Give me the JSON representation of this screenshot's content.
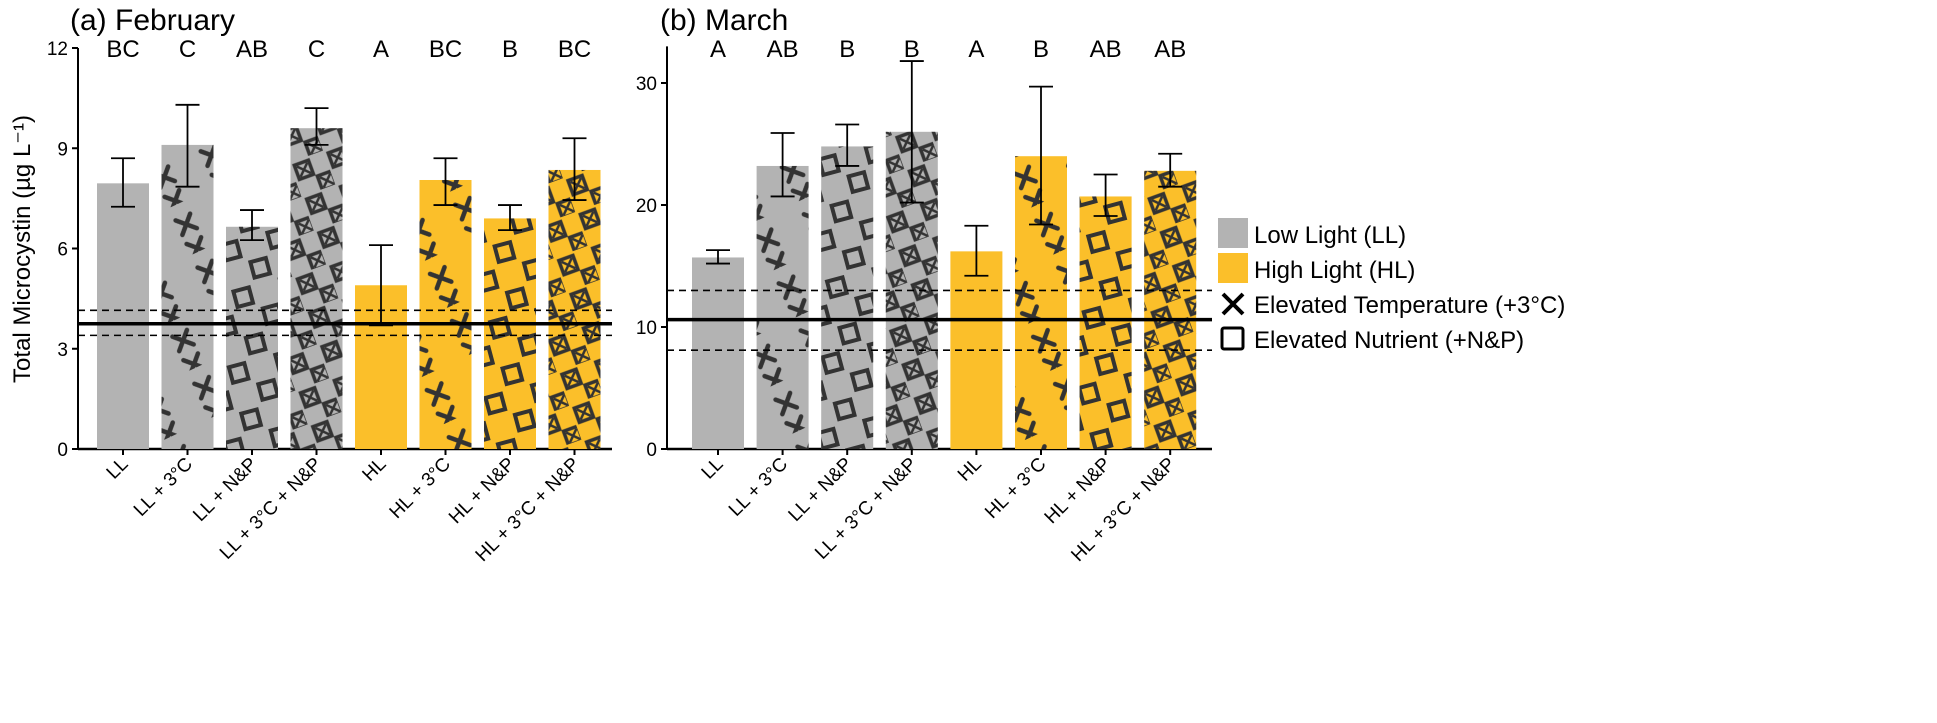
{
  "chart_data": [
    {
      "type": "bar",
      "title": "(a) February",
      "ylabel": "Total Microcystin (µg L⁻¹)",
      "ylim": [
        0,
        12
      ],
      "yticks": [
        0,
        3,
        6,
        9,
        12
      ],
      "categories": [
        "LL",
        "LL + 3°C",
        "LL + N&P",
        "LL + 3°C + N&P",
        "HL",
        "HL + 3°C",
        "HL + N&P",
        "HL + 3°C + N&P"
      ],
      "values": [
        7.95,
        9.1,
        6.65,
        9.6,
        4.9,
        8.05,
        6.9,
        8.35
      ],
      "error_low": [
        7.25,
        7.85,
        6.25,
        9.1,
        3.7,
        7.3,
        6.55,
        7.45
      ],
      "error_high": [
        8.7,
        10.3,
        7.15,
        10.2,
        6.1,
        8.7,
        7.3,
        9.3
      ],
      "letters": [
        "BC",
        "C",
        "AB",
        "C",
        "A",
        "BC",
        "B",
        "BC"
      ],
      "reference_line": 3.75,
      "reference_band": [
        3.4,
        4.15
      ]
    },
    {
      "type": "bar",
      "title": "(b) March",
      "ylim": [
        0,
        33
      ],
      "yticks": [
        0,
        10,
        20,
        30
      ],
      "categories": [
        "LL",
        "LL + 3°C",
        "LL + N&P",
        "LL + 3°C + N&P",
        "HL",
        "HL + 3°C",
        "HL + N&P",
        "HL + 3°C + N&P"
      ],
      "values": [
        15.7,
        23.2,
        24.8,
        26.0,
        16.2,
        24.0,
        20.7,
        22.8
      ],
      "error_low": [
        15.2,
        20.7,
        23.2,
        20.2,
        14.2,
        18.4,
        19.1,
        21.5
      ],
      "error_high": [
        16.3,
        25.9,
        26.6,
        31.8,
        18.3,
        29.7,
        22.5,
        24.2
      ],
      "letters": [
        "A",
        "AB",
        "B",
        "B",
        "A",
        "B",
        "AB",
        "AB"
      ],
      "reference_line": 10.6,
      "reference_band": [
        8.1,
        13.0
      ]
    }
  ],
  "treatments": {
    "light": [
      "LL",
      "LL",
      "LL",
      "LL",
      "HL",
      "HL",
      "HL",
      "HL"
    ],
    "pattern": [
      "none",
      "cross",
      "square",
      "both",
      "none",
      "cross",
      "square",
      "both"
    ]
  },
  "legend": {
    "placement": "right",
    "entries": [
      {
        "label": "Low Light (LL)",
        "kind": "fill",
        "color": "#b3b3b3"
      },
      {
        "label": "High Light (HL)",
        "kind": "fill",
        "color": "#fbbf2a"
      },
      {
        "label": "Elevated Temperature (+3°C)",
        "kind": "cross-icon"
      },
      {
        "label": "Elevated Nutrient (+N&P)",
        "kind": "square-icon"
      }
    ]
  },
  "colors": {
    "LL": "#b3b3b3",
    "HL": "#fbbf2a",
    "pattern": "#333333"
  }
}
